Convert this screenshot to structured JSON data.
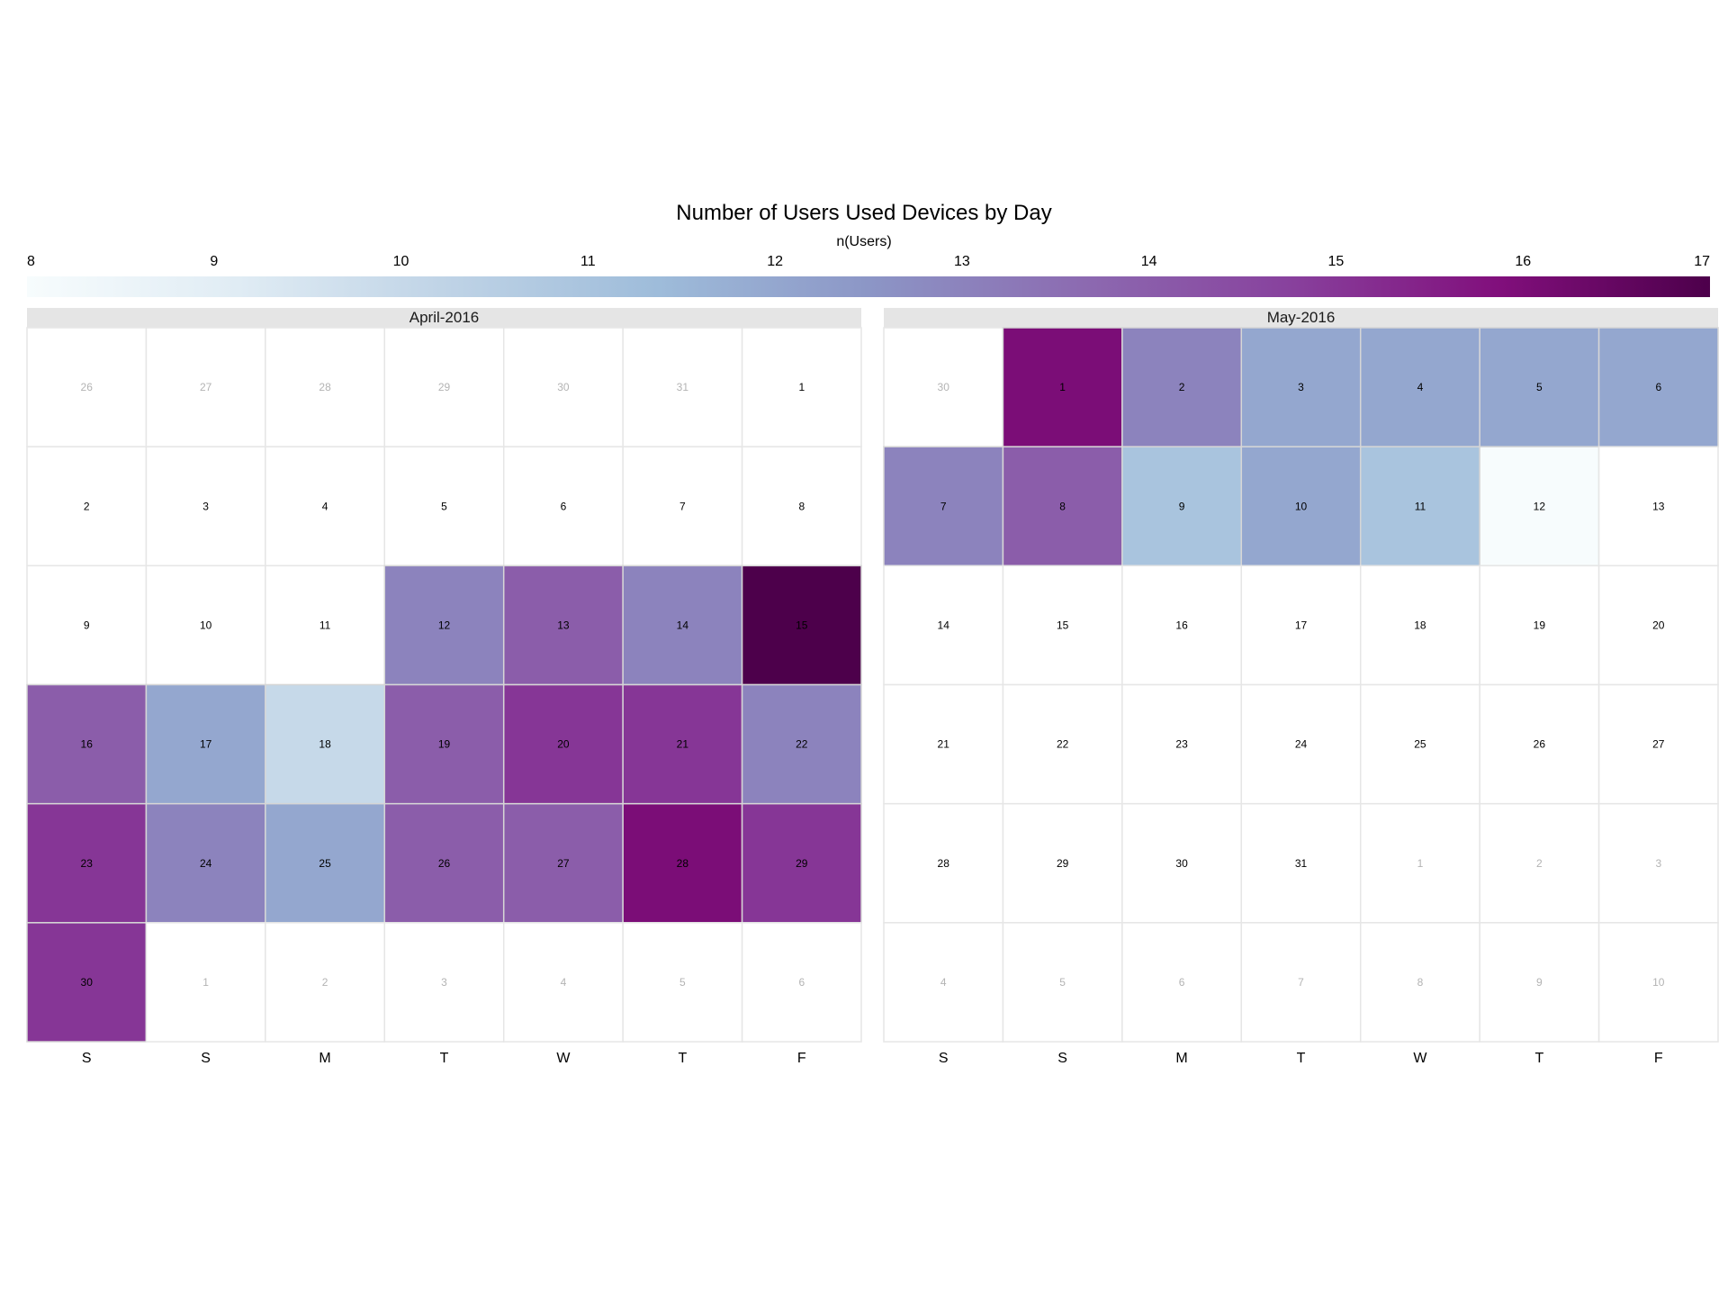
{
  "chart_data": {
    "type": "heatmap",
    "title": "Number of Users Used Devices by Day",
    "legend": {
      "title": "n(Users)",
      "placement": "top",
      "min": 8,
      "max": 17,
      "ticks": [
        "8",
        "9",
        "10",
        "11",
        "12",
        "13",
        "14",
        "15",
        "16",
        "17"
      ],
      "colors": [
        "#f7fcfd",
        "#e0ecf4",
        "#bfd3e6",
        "#9ebcda",
        "#8c96c6",
        "#8c6bb1",
        "#88419d",
        "#810f7c",
        "#4d004b"
      ]
    },
    "weekday_labels": [
      "S",
      "S",
      "M",
      "T",
      "W",
      "T",
      "F"
    ],
    "panels": [
      {
        "month_label": "April-2016",
        "weeks": [
          [
            {
              "day": "26",
              "in_month": false
            },
            {
              "day": "27",
              "in_month": false
            },
            {
              "day": "28",
              "in_month": false
            },
            {
              "day": "29",
              "in_month": false
            },
            {
              "day": "30",
              "in_month": false
            },
            {
              "day": "31",
              "in_month": false
            },
            {
              "day": "1",
              "in_month": true
            }
          ],
          [
            {
              "day": "2",
              "in_month": true
            },
            {
              "day": "3",
              "in_month": true
            },
            {
              "day": "4",
              "in_month": true
            },
            {
              "day": "5",
              "in_month": true
            },
            {
              "day": "6",
              "in_month": true
            },
            {
              "day": "7",
              "in_month": true
            },
            {
              "day": "8",
              "in_month": true
            }
          ],
          [
            {
              "day": "9",
              "in_month": true
            },
            {
              "day": "10",
              "in_month": true
            },
            {
              "day": "11",
              "in_month": true
            },
            {
              "day": "12",
              "in_month": true,
              "value": 13
            },
            {
              "day": "13",
              "in_month": true,
              "value": 14
            },
            {
              "day": "14",
              "in_month": true,
              "value": 13
            },
            {
              "day": "15",
              "in_month": true,
              "value": 17
            }
          ],
          [
            {
              "day": "16",
              "in_month": true,
              "value": 14
            },
            {
              "day": "17",
              "in_month": true,
              "value": 12
            },
            {
              "day": "18",
              "in_month": true,
              "value": 10
            },
            {
              "day": "19",
              "in_month": true,
              "value": 14
            },
            {
              "day": "20",
              "in_month": true,
              "value": 15
            },
            {
              "day": "21",
              "in_month": true,
              "value": 15
            },
            {
              "day": "22",
              "in_month": true,
              "value": 13
            }
          ],
          [
            {
              "day": "23",
              "in_month": true,
              "value": 15
            },
            {
              "day": "24",
              "in_month": true,
              "value": 13
            },
            {
              "day": "25",
              "in_month": true,
              "value": 12
            },
            {
              "day": "26",
              "in_month": true,
              "value": 14
            },
            {
              "day": "27",
              "in_month": true,
              "value": 14
            },
            {
              "day": "28",
              "in_month": true,
              "value": 16
            },
            {
              "day": "29",
              "in_month": true,
              "value": 15
            }
          ],
          [
            {
              "day": "30",
              "in_month": true,
              "value": 15
            },
            {
              "day": "1",
              "in_month": false
            },
            {
              "day": "2",
              "in_month": false
            },
            {
              "day": "3",
              "in_month": false
            },
            {
              "day": "4",
              "in_month": false
            },
            {
              "day": "5",
              "in_month": false
            },
            {
              "day": "6",
              "in_month": false
            }
          ]
        ]
      },
      {
        "month_label": "May-2016",
        "weeks": [
          [
            {
              "day": "30",
              "in_month": false
            },
            {
              "day": "1",
              "in_month": true,
              "value": 16
            },
            {
              "day": "2",
              "in_month": true,
              "value": 13
            },
            {
              "day": "3",
              "in_month": true,
              "value": 12
            },
            {
              "day": "4",
              "in_month": true,
              "value": 12
            },
            {
              "day": "5",
              "in_month": true,
              "value": 12
            },
            {
              "day": "6",
              "in_month": true,
              "value": 12
            }
          ],
          [
            {
              "day": "7",
              "in_month": true,
              "value": 13
            },
            {
              "day": "8",
              "in_month": true,
              "value": 14
            },
            {
              "day": "9",
              "in_month": true,
              "value": 11
            },
            {
              "day": "10",
              "in_month": true,
              "value": 12
            },
            {
              "day": "11",
              "in_month": true,
              "value": 11
            },
            {
              "day": "12",
              "in_month": true,
              "value": 8
            },
            {
              "day": "13",
              "in_month": true
            }
          ],
          [
            {
              "day": "14",
              "in_month": true
            },
            {
              "day": "15",
              "in_month": true
            },
            {
              "day": "16",
              "in_month": true
            },
            {
              "day": "17",
              "in_month": true
            },
            {
              "day": "18",
              "in_month": true
            },
            {
              "day": "19",
              "in_month": true
            },
            {
              "day": "20",
              "in_month": true
            }
          ],
          [
            {
              "day": "21",
              "in_month": true
            },
            {
              "day": "22",
              "in_month": true
            },
            {
              "day": "23",
              "in_month": true
            },
            {
              "day": "24",
              "in_month": true
            },
            {
              "day": "25",
              "in_month": true
            },
            {
              "day": "26",
              "in_month": true
            },
            {
              "day": "27",
              "in_month": true
            }
          ],
          [
            {
              "day": "28",
              "in_month": true
            },
            {
              "day": "29",
              "in_month": true
            },
            {
              "day": "30",
              "in_month": true
            },
            {
              "day": "31",
              "in_month": true
            },
            {
              "day": "1",
              "in_month": false
            },
            {
              "day": "2",
              "in_month": false
            },
            {
              "day": "3",
              "in_month": false
            }
          ],
          [
            {
              "day": "4",
              "in_month": false
            },
            {
              "day": "5",
              "in_month": false
            },
            {
              "day": "6",
              "in_month": false
            },
            {
              "day": "7",
              "in_month": false
            },
            {
              "day": "8",
              "in_month": false
            },
            {
              "day": "9",
              "in_month": false
            },
            {
              "day": "10",
              "in_month": false
            }
          ]
        ]
      }
    ]
  }
}
